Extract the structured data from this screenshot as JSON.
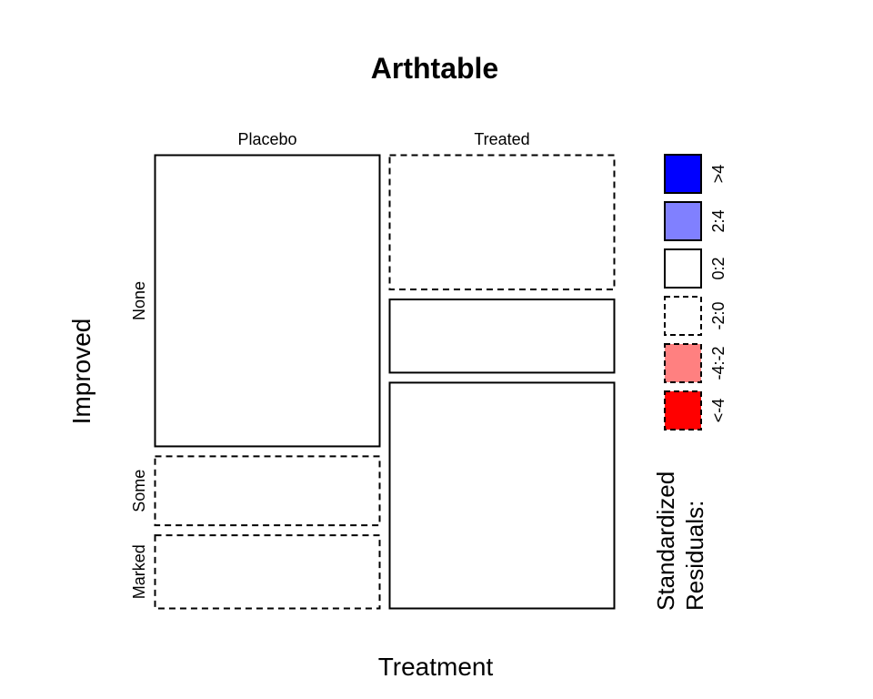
{
  "chart_data": {
    "type": "mosaic",
    "title": "Arthtable",
    "xlabel": "Treatment",
    "ylabel": "Improved",
    "x_categories": [
      "Placebo",
      "Treated"
    ],
    "y_categories": [
      "None",
      "Some",
      "Marked"
    ],
    "column_proportions": [
      0.5,
      0.5
    ],
    "cell_proportions": {
      "Placebo": [
        0.67,
        0.16,
        0.17
      ],
      "Treated": [
        0.31,
        0.17,
        0.52
      ]
    },
    "residual_sign": {
      "Placebo": [
        "positive",
        "negative",
        "negative"
      ],
      "Treated": [
        "negative",
        "positive",
        "positive"
      ]
    },
    "legend": {
      "title_lines": [
        "Standardized",
        "Residuals:"
      ],
      "entries": [
        {
          "label": ">4",
          "color": "#0000ff",
          "dashed": false
        },
        {
          "label": "2:4",
          "color": "#8080ff",
          "dashed": false
        },
        {
          "label": "0:2",
          "color": "#ffffff",
          "dashed": false
        },
        {
          "label": "-2:0",
          "color": "#ffffff",
          "dashed": true
        },
        {
          "label": "-4:-2",
          "color": "#ff8080",
          "dashed": true
        },
        {
          "label": "<-4",
          "color": "#ff0000",
          "dashed": true
        }
      ]
    }
  }
}
